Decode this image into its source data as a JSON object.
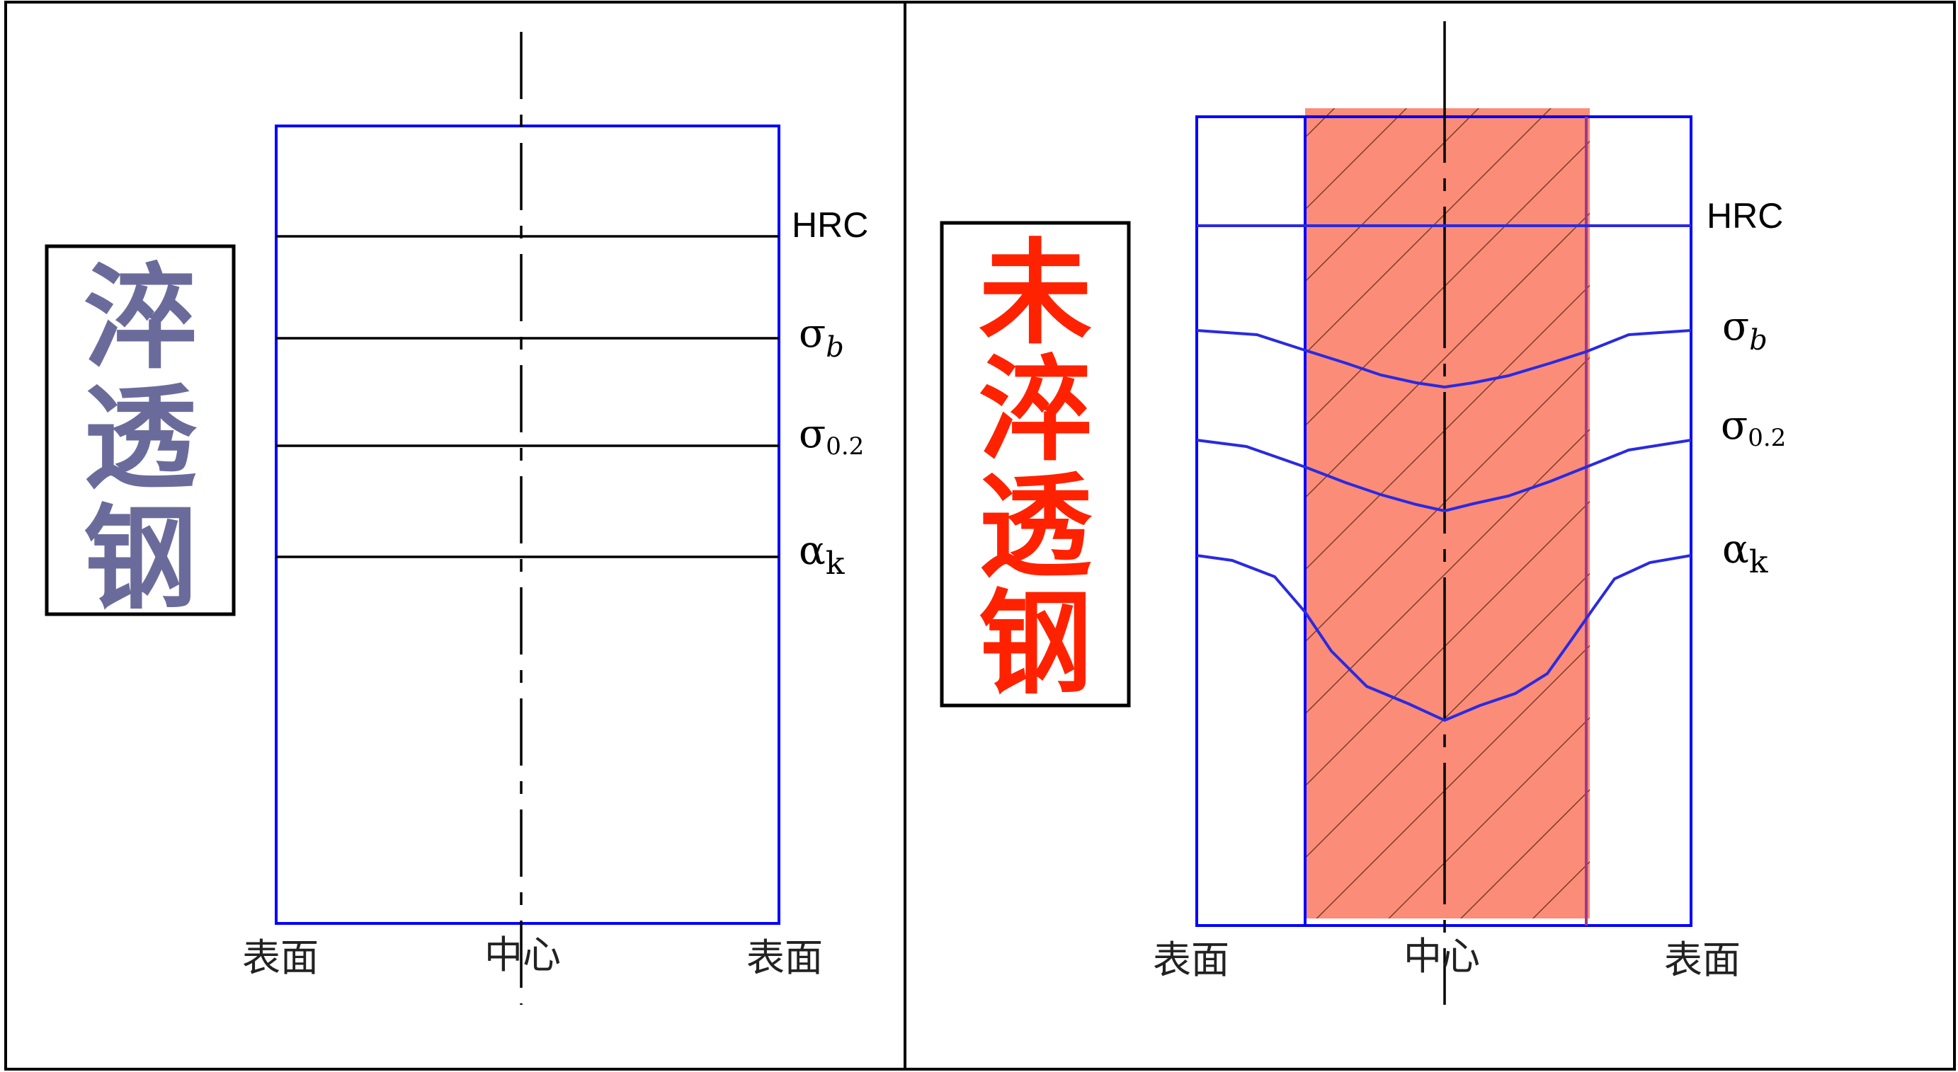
{
  "colors": {
    "frame": "#000000",
    "outline_blue": "#0000ff",
    "curve_blue": "#2a2ae0",
    "hatch_fill": "#fa8c78",
    "hatch_line": "#6b2a1a",
    "title_left": "#6b6b9b",
    "title_right": "#ff2200"
  },
  "left_panel": {
    "title": "淬透钢",
    "x_labels": [
      "表面",
      "中心",
      "表面"
    ],
    "properties": [
      {
        "id": "hrc",
        "label": "HRC"
      },
      {
        "id": "sigma_b",
        "symbol": "σ",
        "sub": "b"
      },
      {
        "id": "sigma_02",
        "symbol": "σ",
        "sub": "0.2"
      },
      {
        "id": "alpha_k",
        "symbol": "α",
        "sub": "k"
      }
    ]
  },
  "right_panel": {
    "title": "未淬透钢",
    "x_labels": [
      "表面",
      "中心",
      "表面"
    ],
    "properties": [
      {
        "id": "hrc",
        "label": "HRC"
      },
      {
        "id": "sigma_b",
        "symbol": "σ",
        "sub": "b"
      },
      {
        "id": "sigma_02",
        "symbol": "σ",
        "sub": "0.2"
      },
      {
        "id": "alpha_k",
        "symbol": "α",
        "sub": "k"
      }
    ]
  }
}
